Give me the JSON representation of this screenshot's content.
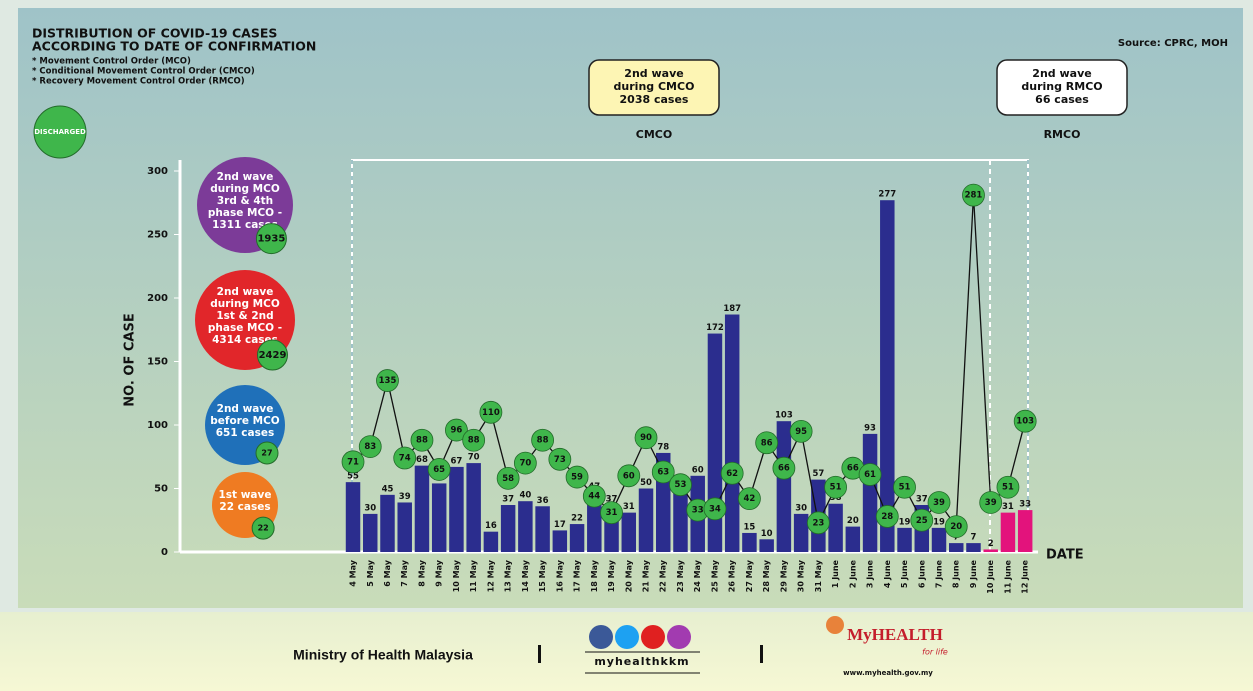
{
  "header": {
    "title": [
      "DISTRIBUTION OF COVID-19 CASES",
      "ACCORDING TO DATE OF CONFIRMATION"
    ],
    "notes": [
      "* Movement Control Order (MCO)",
      "* Conditional Movement Control Order (CMCO)",
      "* Recovery Movement Control Order (RMCO)"
    ],
    "source": "Source: CPRC, MOH"
  },
  "chart_data": {
    "type": "bar",
    "categories": [
      "4 May",
      "5 May",
      "6 May",
      "7 May",
      "8 May",
      "9 May",
      "10 May",
      "11 May",
      "12 May",
      "13 May",
      "14 May",
      "15 May",
      "16 May",
      "17 May",
      "18 May",
      "19 May",
      "20 May",
      "21 May",
      "22 May",
      "23 May",
      "24 May",
      "25 May",
      "26 May",
      "27 May",
      "28 May",
      "29 May",
      "30 May",
      "31 May",
      "1 June",
      "2 June",
      "3 June",
      "4 June",
      "5 June",
      "6 June",
      "7 June",
      "8 June",
      "9 June",
      "10 June",
      "11 June",
      "12 June"
    ],
    "series": [
      {
        "type": "bar",
        "values": [
          55,
          30,
          45,
          39,
          68,
          54,
          67,
          70,
          16,
          37,
          40,
          36,
          17,
          22,
          47,
          37,
          31,
          50,
          78,
          48,
          60,
          172,
          187,
          15,
          10,
          103,
          30,
          57,
          38,
          20,
          93,
          277,
          19,
          37,
          19,
          7,
          7,
          2,
          31,
          33
        ],
        "colors": [
          "#2b2d8e",
          "#2b2d8e",
          "#2b2d8e",
          "#2b2d8e",
          "#2b2d8e",
          "#2b2d8e",
          "#2b2d8e",
          "#2b2d8e",
          "#2b2d8e",
          "#2b2d8e",
          "#2b2d8e",
          "#2b2d8e",
          "#2b2d8e",
          "#2b2d8e",
          "#2b2d8e",
          "#2b2d8e",
          "#2b2d8e",
          "#2b2d8e",
          "#2b2d8e",
          "#2b2d8e",
          "#2b2d8e",
          "#2b2d8e",
          "#2b2d8e",
          "#2b2d8e",
          "#2b2d8e",
          "#2b2d8e",
          "#2b2d8e",
          "#2b2d8e",
          "#2b2d8e",
          "#2b2d8e",
          "#2b2d8e",
          "#2b2d8e",
          "#2b2d8e",
          "#2b2d8e",
          "#2b2d8e",
          "#2b2d8e",
          "#2b2d8e",
          "#e3137c",
          "#e3137c",
          "#e3137c"
        ]
      },
      {
        "type": "line",
        "name": "DISCHARGED",
        "color": "#3fb64b",
        "values": [
          71,
          83,
          135,
          74,
          88,
          65,
          96,
          88,
          110,
          58,
          70,
          88,
          73,
          59,
          44,
          31,
          60,
          90,
          63,
          53,
          33,
          34,
          62,
          42,
          86,
          66,
          95,
          23,
          51,
          66,
          61,
          28,
          51,
          25,
          39,
          20,
          281,
          39,
          51,
          103
        ]
      }
    ],
    "ylim": [
      0,
      300
    ],
    "yticks": [
      0,
      50,
      100,
      150,
      200,
      250,
      300
    ],
    "ylabel": "NO. OF CASE",
    "xlabel": "DATE"
  },
  "phases": [
    {
      "box": [
        "2nd wave",
        "during CMCO",
        "2038 cases"
      ],
      "name": "CMCO",
      "color": "#fdf5b4"
    },
    {
      "box": [
        "2nd wave",
        "during RMCO",
        "66 cases"
      ],
      "name": "RMCO",
      "color": "#ffffff"
    }
  ],
  "waves": [
    {
      "label": [
        "2nd wave",
        "during MCO",
        "3rd & 4th",
        "phase MCO -",
        "1311 cases"
      ],
      "discharged": 1935,
      "color": "#7c3b98"
    },
    {
      "label": [
        "2nd wave",
        "during MCO",
        "1st & 2nd",
        "phase MCO -",
        "4314 cases"
      ],
      "discharged": 2429,
      "color": "#e1262a"
    },
    {
      "label": [
        "2nd wave",
        "before MCO",
        "651 cases"
      ],
      "discharged": 27,
      "color": "#1f70b9"
    },
    {
      "label": [
        "1st wave",
        "22 cases"
      ],
      "discharged": 22,
      "color": "#ef7b22"
    }
  ],
  "footer": {
    "ministry": "Ministry of Health Malaysia",
    "handle": "myhealthkkm",
    "logo": "MyHEALTH",
    "tagline": "for life",
    "url": "www.myhealth.gov.my"
  }
}
